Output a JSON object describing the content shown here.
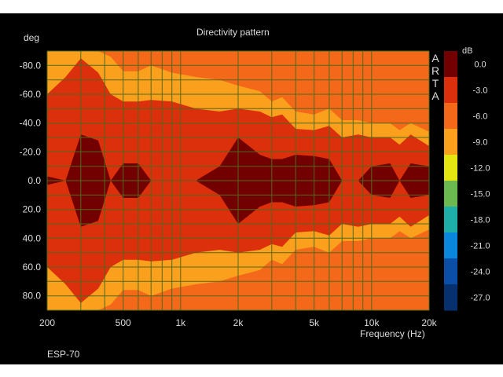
{
  "chart_data": {
    "type": "heatmap",
    "title": "Directivity pattern",
    "ylabel": "deg",
    "xlabel": "Frequency (Hz)",
    "footer": "ESP-70",
    "watermark": "ARTA",
    "x_scale": "log",
    "xlim": [
      200,
      20000
    ],
    "ylim": [
      -90,
      90
    ],
    "y_inverted": true,
    "x_ticks": [
      {
        "value": 200,
        "label": "200"
      },
      {
        "value": 500,
        "label": "500"
      },
      {
        "value": 1000,
        "label": "1k"
      },
      {
        "value": 2000,
        "label": "2k"
      },
      {
        "value": 5000,
        "label": "5k"
      },
      {
        "value": 10000,
        "label": "10k"
      },
      {
        "value": 20000,
        "label": "20k"
      }
    ],
    "y_ticks": [
      {
        "value": -80,
        "label": "-80.0"
      },
      {
        "value": -60,
        "label": "-60.0"
      },
      {
        "value": -40,
        "label": "-40.0"
      },
      {
        "value": -20,
        "label": "-20.0"
      },
      {
        "value": 0,
        "label": "0.0"
      },
      {
        "value": 20,
        "label": "20.0"
      },
      {
        "value": 40,
        "label": "40.0"
      },
      {
        "value": 60,
        "label": "60.0"
      },
      {
        "value": 80,
        "label": "80.0"
      }
    ],
    "x_grid": [
      200,
      300,
      400,
      500,
      600,
      700,
      800,
      900,
      1000,
      2000,
      3000,
      4000,
      5000,
      6000,
      7000,
      8000,
      9000,
      10000,
      20000
    ],
    "y_grid": [
      -90,
      -80,
      -70,
      -60,
      -50,
      -40,
      -30,
      -20,
      -10,
      0,
      10,
      20,
      30,
      40,
      50,
      60,
      70,
      80,
      90
    ],
    "grid": true,
    "grid_color": "#4f6a1c",
    "colorbar": {
      "unit": "dB",
      "position": "right",
      "levels": [
        {
          "label": "0.0",
          "color": "#730000"
        },
        {
          "label": "-3.0",
          "color": "#dc2f0c"
        },
        {
          "label": "-6.0",
          "color": "#f4681a"
        },
        {
          "label": "-9.0",
          "color": "#fba01c"
        },
        {
          "label": "-12.0",
          "color": "#e5e512"
        },
        {
          "label": "-15.0",
          "color": "#6cba4f"
        },
        {
          "label": "-18.0",
          "color": "#1eb0a8"
        },
        {
          "label": "-21.0",
          "color": "#0a86dc"
        },
        {
          "label": "-24.0",
          "color": "#0a4ea8"
        },
        {
          "label": "-27.0",
          "color": "#06306e"
        }
      ]
    },
    "bands": [
      {
        "f": 200,
        "w": [
          3,
          60,
          90
        ]
      },
      {
        "f": 250,
        "w": [
          0,
          72,
          90
        ]
      },
      {
        "f": 300,
        "w": [
          32,
          85,
          90
        ]
      },
      {
        "f": 370,
        "w": [
          28,
          75,
          90
        ]
      },
      {
        "f": 430,
        "w": [
          0,
          60,
          86
        ]
      },
      {
        "f": 500,
        "w": [
          12,
          55,
          76
        ]
      },
      {
        "f": 600,
        "w": [
          12,
          55,
          76
        ]
      },
      {
        "f": 700,
        "w": [
          0,
          56,
          80
        ]
      },
      {
        "f": 900,
        "w": [
          0,
          55,
          75
        ]
      },
      {
        "f": 1200,
        "w": [
          0,
          50,
          72
        ]
      },
      {
        "f": 1600,
        "w": [
          10,
          48,
          70
        ]
      },
      {
        "f": 2000,
        "w": [
          30,
          50,
          66
        ]
      },
      {
        "f": 2600,
        "w": [
          18,
          48,
          62
        ]
      },
      {
        "f": 3000,
        "w": [
          15,
          44,
          55
        ]
      },
      {
        "f": 3400,
        "w": [
          15,
          46,
          58
        ]
      },
      {
        "f": 4000,
        "w": [
          18,
          36,
          48
        ]
      },
      {
        "f": 5000,
        "w": [
          17,
          35,
          46
        ]
      },
      {
        "f": 6000,
        "w": [
          15,
          38,
          50
        ]
      },
      {
        "f": 7000,
        "w": [
          0,
          30,
          42
        ]
      },
      {
        "f": 8500,
        "w": [
          0,
          32,
          42
        ]
      },
      {
        "f": 10000,
        "w": [
          10,
          30,
          40
        ]
      },
      {
        "f": 12500,
        "w": [
          12,
          30,
          40
        ]
      },
      {
        "f": 14000,
        "w": [
          0,
          25,
          35
        ]
      },
      {
        "f": 16000,
        "w": [
          12,
          32,
          40
        ]
      },
      {
        "f": 20000,
        "w": [
          10,
          24,
          34
        ]
      }
    ]
  }
}
